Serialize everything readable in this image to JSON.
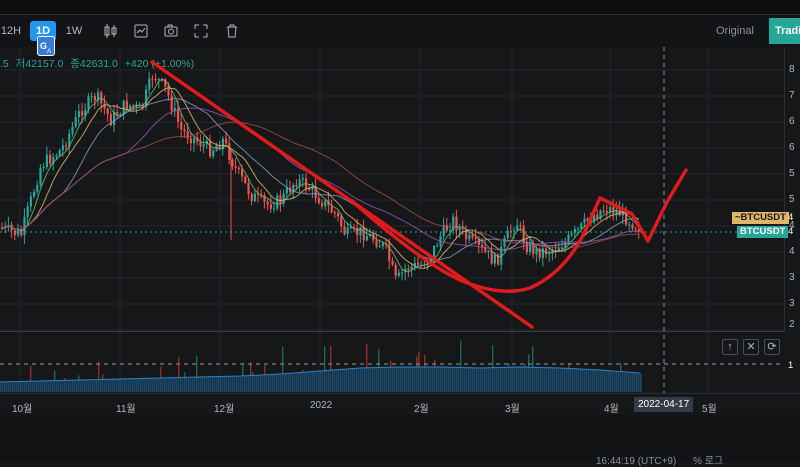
{
  "toolbar": {
    "timeframes": [
      {
        "label": "12H"
      },
      {
        "label": "1D"
      },
      {
        "label": "1W"
      }
    ],
    "icons": [
      "candles-icon",
      "indicators-icon",
      "camera-icon",
      "fullscreen-icon",
      "trash-icon"
    ],
    "original_label": "Original",
    "tradingview_label": "Tradi"
  },
  "legend": {
    "prefix": ".5",
    "low": "저42157.0",
    "close": "종42631.0",
    "change": "+42",
    "change_tail": "0 (+1.00%)",
    "color": "#26a69a"
  },
  "price_axis": {
    "ticks": [
      "8",
      "7",
      "6",
      "6",
      "5",
      "5",
      "4",
      "4",
      "3",
      "3",
      "2"
    ],
    "labels": [
      {
        "text": "~BTCUSDT",
        "value": "4",
        "bg": "#e0b567"
      },
      {
        "text": "BTCUSDT",
        "value": "4",
        "bg": "#26a69a"
      }
    ],
    "volume_value": "1"
  },
  "volume_pane": {
    "buttons": [
      {
        "symbol": "↑"
      },
      {
        "symbol": "✕"
      },
      {
        "symbol": "⟳"
      }
    ]
  },
  "time_axis": {
    "ticks": [
      "10월",
      "11월",
      "12월",
      "2022",
      "2월",
      "3월",
      "4월",
      "5월"
    ],
    "crosshair_date": "2022-04-17"
  },
  "footer": {
    "time_text": "16:44:19 (UTC+9)",
    "scale_text": "%  로그"
  },
  "colors": {
    "up": "#26a69a",
    "down": "#ef5350",
    "drawing": "#e01b1b",
    "background": "#161719",
    "accent": "#2196f3"
  },
  "chart_data": {
    "type": "candlestick",
    "symbol": "BTCUSDT",
    "x_labels": [
      "10월",
      "11월",
      "12월",
      "2022",
      "2월",
      "3월",
      "4월",
      "5월"
    ],
    "volume_levels": [
      0.2,
      0.22,
      0.24,
      0.26,
      0.28,
      0.3,
      0.32,
      0.36,
      0.42,
      0.48,
      0.5,
      0.5,
      0.48,
      0.5,
      0.48,
      0.44,
      0.38
    ]
  }
}
